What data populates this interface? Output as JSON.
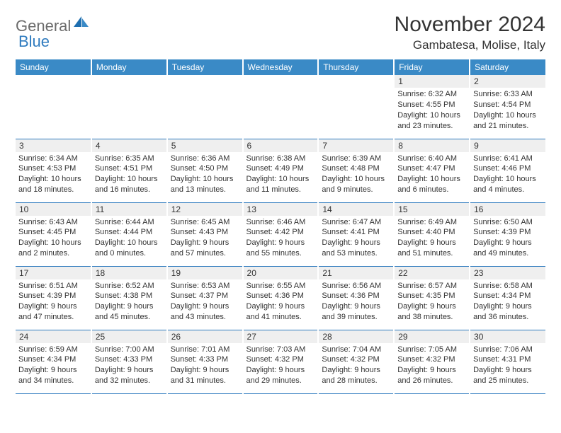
{
  "logo": {
    "general": "General",
    "blue": "Blue"
  },
  "title": "November 2024",
  "location": "Gambatesa, Molise, Italy",
  "colors": {
    "header_bg": "#3a8ac6",
    "header_text": "#ffffff",
    "daynum_bg": "#efefef",
    "border": "#2f7bbf",
    "text": "#333333",
    "logo_gray": "#6b6b6b",
    "logo_blue": "#2f7bbf"
  },
  "day_headers": [
    "Sunday",
    "Monday",
    "Tuesday",
    "Wednesday",
    "Thursday",
    "Friday",
    "Saturday"
  ],
  "weeks": [
    [
      {
        "n": "",
        "sr": "",
        "ss": "",
        "dl": ""
      },
      {
        "n": "",
        "sr": "",
        "ss": "",
        "dl": ""
      },
      {
        "n": "",
        "sr": "",
        "ss": "",
        "dl": ""
      },
      {
        "n": "",
        "sr": "",
        "ss": "",
        "dl": ""
      },
      {
        "n": "",
        "sr": "",
        "ss": "",
        "dl": ""
      },
      {
        "n": "1",
        "sr": "Sunrise: 6:32 AM",
        "ss": "Sunset: 4:55 PM",
        "dl": "Daylight: 10 hours and 23 minutes."
      },
      {
        "n": "2",
        "sr": "Sunrise: 6:33 AM",
        "ss": "Sunset: 4:54 PM",
        "dl": "Daylight: 10 hours and 21 minutes."
      }
    ],
    [
      {
        "n": "3",
        "sr": "Sunrise: 6:34 AM",
        "ss": "Sunset: 4:53 PM",
        "dl": "Daylight: 10 hours and 18 minutes."
      },
      {
        "n": "4",
        "sr": "Sunrise: 6:35 AM",
        "ss": "Sunset: 4:51 PM",
        "dl": "Daylight: 10 hours and 16 minutes."
      },
      {
        "n": "5",
        "sr": "Sunrise: 6:36 AM",
        "ss": "Sunset: 4:50 PM",
        "dl": "Daylight: 10 hours and 13 minutes."
      },
      {
        "n": "6",
        "sr": "Sunrise: 6:38 AM",
        "ss": "Sunset: 4:49 PM",
        "dl": "Daylight: 10 hours and 11 minutes."
      },
      {
        "n": "7",
        "sr": "Sunrise: 6:39 AM",
        "ss": "Sunset: 4:48 PM",
        "dl": "Daylight: 10 hours and 9 minutes."
      },
      {
        "n": "8",
        "sr": "Sunrise: 6:40 AM",
        "ss": "Sunset: 4:47 PM",
        "dl": "Daylight: 10 hours and 6 minutes."
      },
      {
        "n": "9",
        "sr": "Sunrise: 6:41 AM",
        "ss": "Sunset: 4:46 PM",
        "dl": "Daylight: 10 hours and 4 minutes."
      }
    ],
    [
      {
        "n": "10",
        "sr": "Sunrise: 6:43 AM",
        "ss": "Sunset: 4:45 PM",
        "dl": "Daylight: 10 hours and 2 minutes."
      },
      {
        "n": "11",
        "sr": "Sunrise: 6:44 AM",
        "ss": "Sunset: 4:44 PM",
        "dl": "Daylight: 10 hours and 0 minutes."
      },
      {
        "n": "12",
        "sr": "Sunrise: 6:45 AM",
        "ss": "Sunset: 4:43 PM",
        "dl": "Daylight: 9 hours and 57 minutes."
      },
      {
        "n": "13",
        "sr": "Sunrise: 6:46 AM",
        "ss": "Sunset: 4:42 PM",
        "dl": "Daylight: 9 hours and 55 minutes."
      },
      {
        "n": "14",
        "sr": "Sunrise: 6:47 AM",
        "ss": "Sunset: 4:41 PM",
        "dl": "Daylight: 9 hours and 53 minutes."
      },
      {
        "n": "15",
        "sr": "Sunrise: 6:49 AM",
        "ss": "Sunset: 4:40 PM",
        "dl": "Daylight: 9 hours and 51 minutes."
      },
      {
        "n": "16",
        "sr": "Sunrise: 6:50 AM",
        "ss": "Sunset: 4:39 PM",
        "dl": "Daylight: 9 hours and 49 minutes."
      }
    ],
    [
      {
        "n": "17",
        "sr": "Sunrise: 6:51 AM",
        "ss": "Sunset: 4:39 PM",
        "dl": "Daylight: 9 hours and 47 minutes."
      },
      {
        "n": "18",
        "sr": "Sunrise: 6:52 AM",
        "ss": "Sunset: 4:38 PM",
        "dl": "Daylight: 9 hours and 45 minutes."
      },
      {
        "n": "19",
        "sr": "Sunrise: 6:53 AM",
        "ss": "Sunset: 4:37 PM",
        "dl": "Daylight: 9 hours and 43 minutes."
      },
      {
        "n": "20",
        "sr": "Sunrise: 6:55 AM",
        "ss": "Sunset: 4:36 PM",
        "dl": "Daylight: 9 hours and 41 minutes."
      },
      {
        "n": "21",
        "sr": "Sunrise: 6:56 AM",
        "ss": "Sunset: 4:36 PM",
        "dl": "Daylight: 9 hours and 39 minutes."
      },
      {
        "n": "22",
        "sr": "Sunrise: 6:57 AM",
        "ss": "Sunset: 4:35 PM",
        "dl": "Daylight: 9 hours and 38 minutes."
      },
      {
        "n": "23",
        "sr": "Sunrise: 6:58 AM",
        "ss": "Sunset: 4:34 PM",
        "dl": "Daylight: 9 hours and 36 minutes."
      }
    ],
    [
      {
        "n": "24",
        "sr": "Sunrise: 6:59 AM",
        "ss": "Sunset: 4:34 PM",
        "dl": "Daylight: 9 hours and 34 minutes."
      },
      {
        "n": "25",
        "sr": "Sunrise: 7:00 AM",
        "ss": "Sunset: 4:33 PM",
        "dl": "Daylight: 9 hours and 32 minutes."
      },
      {
        "n": "26",
        "sr": "Sunrise: 7:01 AM",
        "ss": "Sunset: 4:33 PM",
        "dl": "Daylight: 9 hours and 31 minutes."
      },
      {
        "n": "27",
        "sr": "Sunrise: 7:03 AM",
        "ss": "Sunset: 4:32 PM",
        "dl": "Daylight: 9 hours and 29 minutes."
      },
      {
        "n": "28",
        "sr": "Sunrise: 7:04 AM",
        "ss": "Sunset: 4:32 PM",
        "dl": "Daylight: 9 hours and 28 minutes."
      },
      {
        "n": "29",
        "sr": "Sunrise: 7:05 AM",
        "ss": "Sunset: 4:32 PM",
        "dl": "Daylight: 9 hours and 26 minutes."
      },
      {
        "n": "30",
        "sr": "Sunrise: 7:06 AM",
        "ss": "Sunset: 4:31 PM",
        "dl": "Daylight: 9 hours and 25 minutes."
      }
    ]
  ]
}
